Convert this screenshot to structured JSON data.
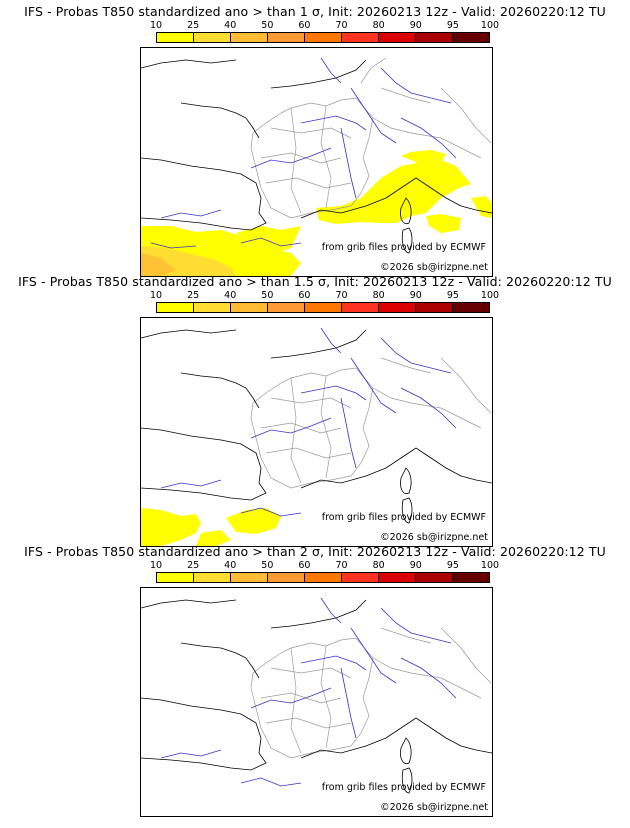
{
  "panels": [
    {
      "title": "IFS - Probas T850  standardized ano > than 1 σ, Init: 20260213 12z - Valid: 20260220:12 TU",
      "threshold": "1 σ"
    },
    {
      "title": "IFS - Probas T850  standardized ano > than 1.5 σ, Init: 20260213 12z - Valid: 20260220:12 TU",
      "threshold": "1.5 σ"
    },
    {
      "title": "IFS - Probas T850  standardized ano > than 2 σ, Init: 20260213 12z - Valid: 20260220:12 TU",
      "threshold": "2 σ"
    }
  ],
  "colorbar": {
    "ticks": [
      "10",
      "25",
      "40",
      "50",
      "60",
      "70",
      "80",
      "90",
      "95",
      "100"
    ],
    "colors": [
      "#ffff00",
      "#ffdd33",
      "#ffbb33",
      "#ff9933",
      "#ff7700",
      "#ff3322",
      "#dd0000",
      "#aa0000",
      "#660000"
    ]
  },
  "source_text": "from grib files provided by ECMWF",
  "copyright_text": "©2026 sb@irizpne.net",
  "colors": {
    "land_border": "#999999",
    "coast": "#000000",
    "rivers": "#3333cc",
    "prob_yellow": "#ffff00",
    "prob_light_orange": "#ffdd33"
  }
}
